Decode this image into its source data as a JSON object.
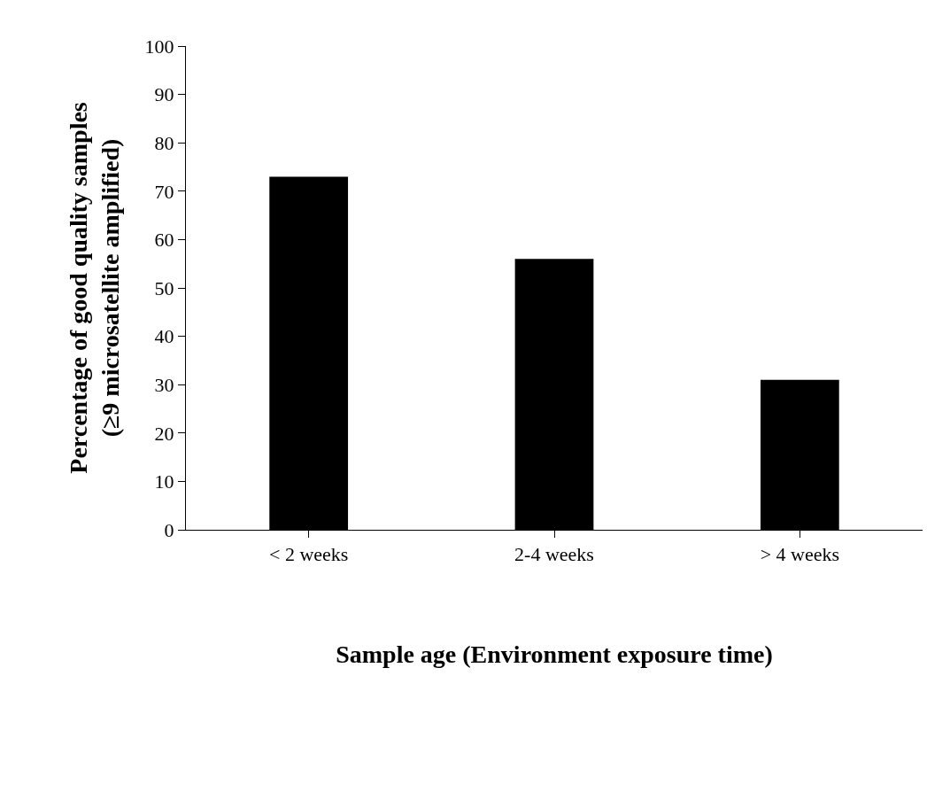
{
  "chart_data": {
    "type": "bar",
    "xlabel": "Sample age (Environment exposure time)",
    "ylabel": "Percentage of good quality samples\n(≥9 microsatellite amplified)",
    "categories": [
      "< 2 weeks",
      "2-4 weeks",
      "> 4 weeks"
    ],
    "values": [
      73,
      56,
      31
    ],
    "color": "#000000",
    "ylim": [
      0,
      100
    ],
    "yticks": [
      0,
      10,
      20,
      30,
      40,
      50,
      60,
      70,
      80,
      90,
      100
    ]
  }
}
